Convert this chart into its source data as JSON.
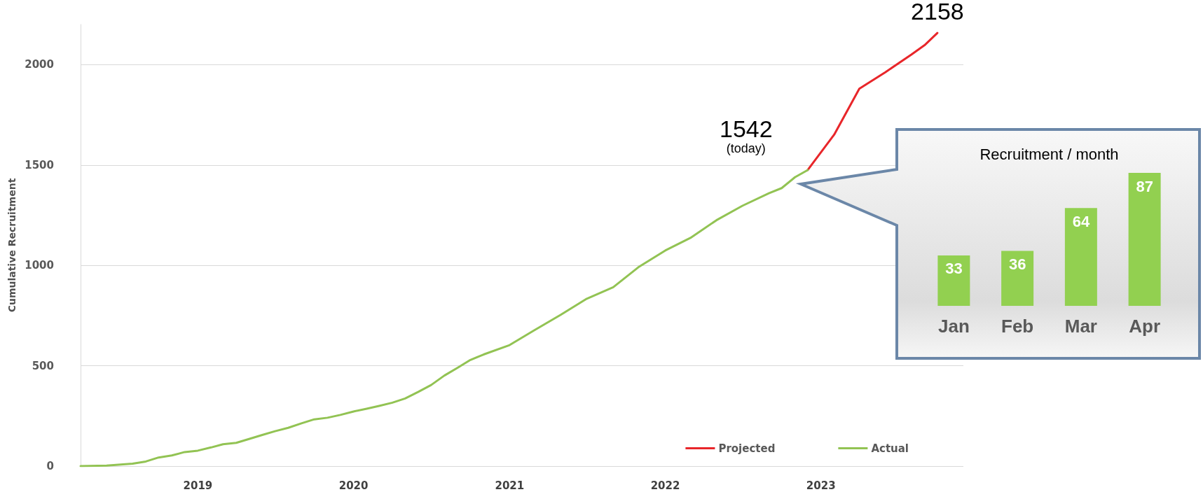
{
  "chart_data": [
    {
      "type": "line",
      "ylabel": "Cumulative Recruitment",
      "xlim": [
        "2018-04",
        "2023-12"
      ],
      "xticks": [
        {
          "value": "2019-01",
          "label": "2019"
        },
        {
          "value": "2020-01",
          "label": "2020"
        },
        {
          "value": "2021-01",
          "label": "2021"
        },
        {
          "value": "2022-01",
          "label": "2022"
        },
        {
          "value": "2023-01",
          "label": "2023"
        }
      ],
      "ylim": [
        0,
        2200
      ],
      "yticks": [
        0,
        500,
        1000,
        1500,
        2000
      ],
      "grid": "y",
      "legend": "bottom right",
      "marker": "none",
      "line_style": "solid",
      "series": [
        {
          "name": "Projected",
          "color": "#e8262a",
          "x": [
            "2022-12",
            "2023-02",
            "2023-04",
            "2023-06",
            "2023-08",
            "2023-09",
            "2023-10"
          ],
          "values": [
            1475,
            1651,
            1880,
            1962,
            2050,
            2097,
            2158
          ]
        },
        {
          "name": "Actual",
          "color": "#92c353",
          "x": [
            "2018-04",
            "2018-06",
            "2018-08",
            "2018-09",
            "2018-10",
            "2018-11",
            "2018-12",
            "2019-01",
            "2019-02",
            "2019-03",
            "2019-04",
            "2019-05",
            "2019-06",
            "2019-07",
            "2019-08",
            "2019-09",
            "2019-10",
            "2019-11",
            "2019-12",
            "2020-01",
            "2020-02",
            "2020-03",
            "2020-04",
            "2020-05",
            "2020-06",
            "2020-07",
            "2020-08",
            "2020-09",
            "2020-10",
            "2020-11",
            "2021-01",
            "2021-03",
            "2021-05",
            "2021-07",
            "2021-09",
            "2021-11",
            "2022-01",
            "2022-03",
            "2022-05",
            "2022-07",
            "2022-09",
            "2022-10",
            "2022-11",
            "2022-12"
          ],
          "values": [
            0,
            3,
            12,
            23,
            43,
            53,
            70,
            77,
            93,
            109,
            116,
            135,
            155,
            174,
            191,
            213,
            233,
            241,
            255,
            272,
            286,
            300,
            316,
            337,
            370,
            404,
            451,
            490,
            529,
            556,
            603,
            678,
            754,
            834,
            891,
            994,
            1074,
            1137,
            1225,
            1297,
            1359,
            1385,
            1439,
            1475
          ]
        }
      ],
      "annotations": [
        {
          "text": "2158",
          "x": "2023-10",
          "y": 2158
        },
        "1542",
        "(today)"
      ]
    },
    {
      "type": "bar",
      "title": "Recruitment / month",
      "categories": [
        "Jan",
        "Feb",
        "Mar",
        "Apr"
      ],
      "values": [
        33,
        36,
        64,
        87
      ],
      "color": "#92d050",
      "data_labels": true,
      "tick_labels": "x"
    }
  ]
}
